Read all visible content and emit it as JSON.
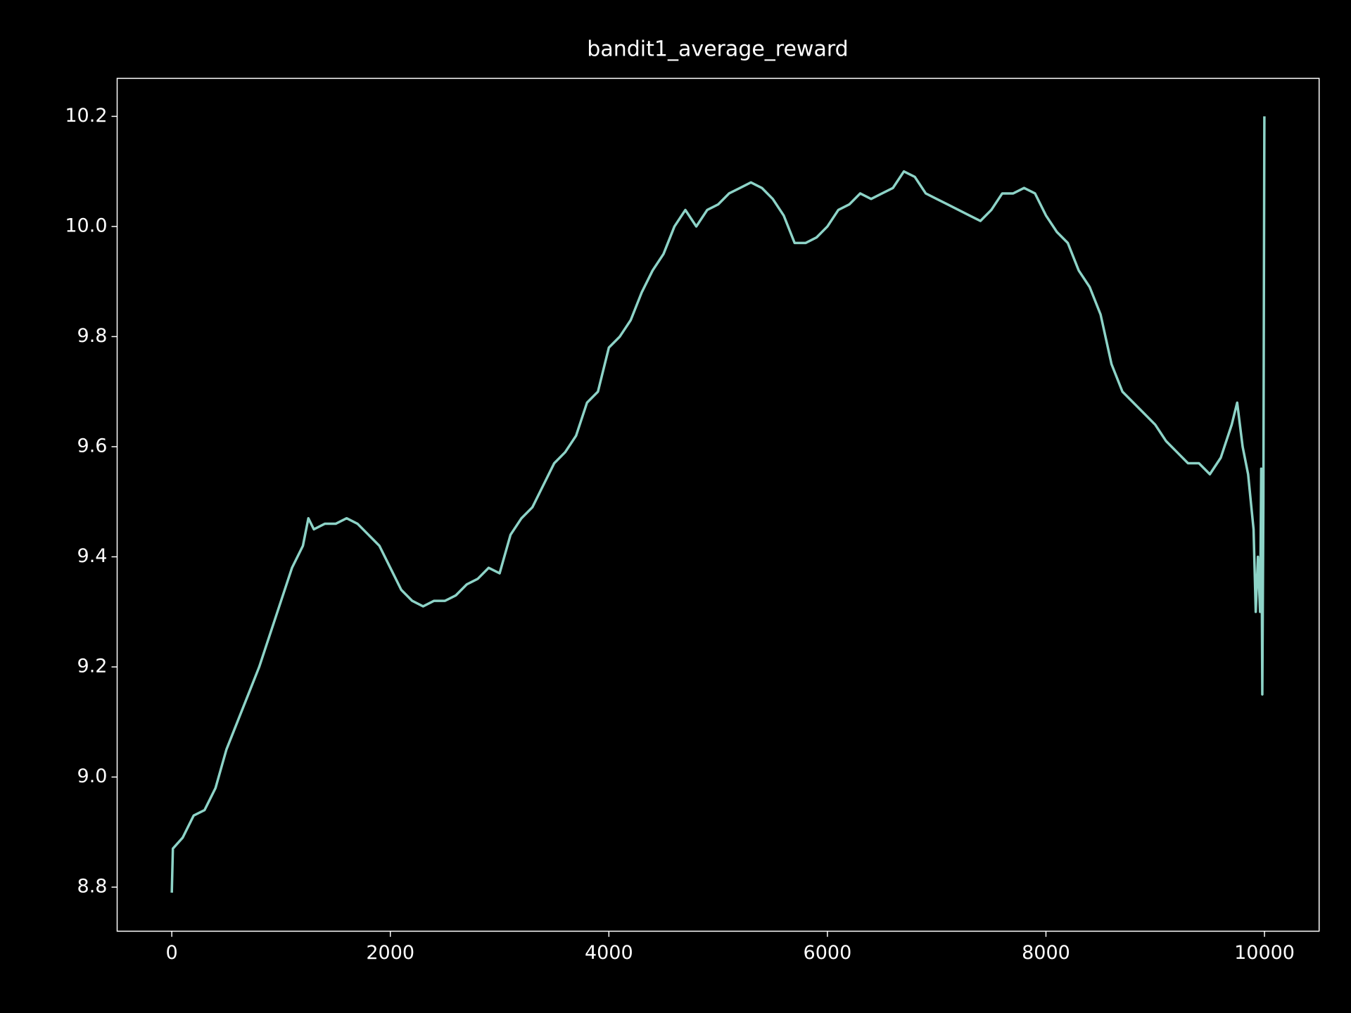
{
  "chart_data": {
    "type": "line",
    "title": "bandit1_average_reward",
    "color": "#8dd3c7",
    "x": [
      0,
      10,
      100,
      200,
      300,
      400,
      500,
      600,
      700,
      800,
      900,
      1000,
      1100,
      1200,
      1250,
      1300,
      1400,
      1500,
      1600,
      1700,
      1800,
      1900,
      2000,
      2100,
      2200,
      2300,
      2400,
      2500,
      2600,
      2700,
      2800,
      2900,
      3000,
      3100,
      3200,
      3300,
      3400,
      3500,
      3600,
      3700,
      3800,
      3900,
      4000,
      4100,
      4200,
      4300,
      4400,
      4500,
      4600,
      4700,
      4800,
      4900,
      5000,
      5100,
      5200,
      5300,
      5400,
      5500,
      5600,
      5700,
      5800,
      5900,
      6000,
      6100,
      6200,
      6300,
      6400,
      6500,
      6600,
      6700,
      6800,
      6900,
      7000,
      7100,
      7200,
      7300,
      7400,
      7500,
      7600,
      7700,
      7800,
      7900,
      8000,
      8100,
      8200,
      8300,
      8400,
      8500,
      8600,
      8700,
      8800,
      8900,
      9000,
      9100,
      9200,
      9300,
      9400,
      9500,
      9600,
      9700,
      9750,
      9800,
      9850,
      9900,
      9920,
      9940,
      9960,
      9970,
      9980,
      9990,
      9995,
      9999
    ],
    "values": [
      8.79,
      8.87,
      8.89,
      8.93,
      8.94,
      8.98,
      9.05,
      9.1,
      9.15,
      9.2,
      9.26,
      9.32,
      9.38,
      9.42,
      9.47,
      9.45,
      9.46,
      9.46,
      9.47,
      9.46,
      9.44,
      9.42,
      9.38,
      9.34,
      9.32,
      9.31,
      9.32,
      9.32,
      9.33,
      9.35,
      9.36,
      9.38,
      9.37,
      9.44,
      9.47,
      9.49,
      9.53,
      9.57,
      9.59,
      9.62,
      9.68,
      9.7,
      9.78,
      9.8,
      9.83,
      9.88,
      9.92,
      9.95,
      10.0,
      10.03,
      10.0,
      10.03,
      10.04,
      10.06,
      10.07,
      10.08,
      10.07,
      10.05,
      10.02,
      9.97,
      9.97,
      9.98,
      10.0,
      10.03,
      10.04,
      10.06,
      10.05,
      10.06,
      10.07,
      10.1,
      10.09,
      10.06,
      10.05,
      10.04,
      10.03,
      10.02,
      10.01,
      10.03,
      10.06,
      10.06,
      10.07,
      10.06,
      10.02,
      9.99,
      9.97,
      9.92,
      9.89,
      9.84,
      9.75,
      9.7,
      9.68,
      9.66,
      9.64,
      9.61,
      9.59,
      9.57,
      9.57,
      9.55,
      9.58,
      9.64,
      9.68,
      9.6,
      9.55,
      9.45,
      9.3,
      9.4,
      9.3,
      9.56,
      9.15,
      9.5,
      9.91,
      10.2
    ],
    "xlim": [
      -500,
      10500
    ],
    "ylim": [
      8.72,
      10.269
    ],
    "xticks": [
      0,
      2000,
      4000,
      6000,
      8000,
      10000
    ],
    "yticks": [
      8.8,
      {
        "value": 9,
        "label": "9.0"
      },
      9.2,
      9.4,
      9.6,
      9.8,
      {
        "value": 10,
        "label": "10.0"
      },
      10.2
    ]
  }
}
